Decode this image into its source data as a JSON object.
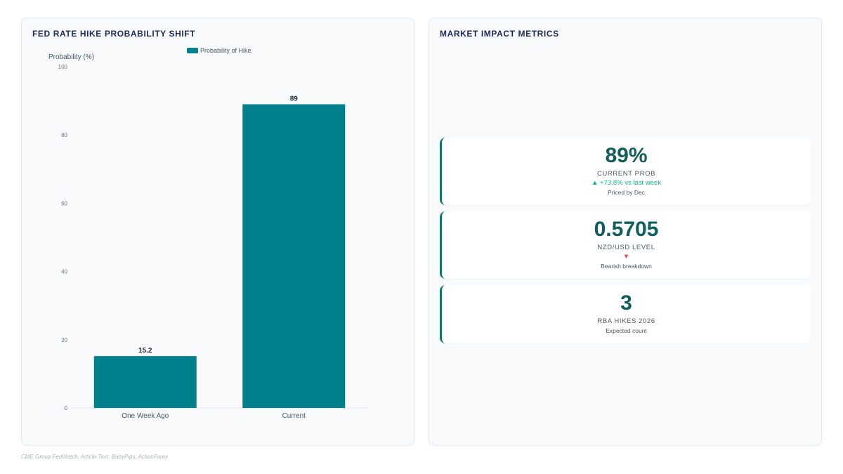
{
  "left_panel": {
    "title": "FED RATE HIKE PROBABILITY SHIFT"
  },
  "right_panel": {
    "title": "MARKET IMPACT METRICS"
  },
  "chart_data": {
    "type": "bar",
    "categories": [
      "One Week Ago",
      "Current"
    ],
    "series": [
      {
        "name": "Probability of Hike",
        "values": [
          15.2,
          89
        ],
        "color": "#00808a"
      }
    ],
    "data_labels": [
      "15.2",
      "89"
    ],
    "ylabel": "Probability (%)",
    "xlabel": "",
    "ylim": [
      0,
      100
    ],
    "yticks": [
      0,
      20,
      40,
      60,
      80,
      100
    ],
    "legend_position": "top-center",
    "grid": false
  },
  "metrics": [
    {
      "value": "89%",
      "label": "CURRENT PROB",
      "change": "▲ +73.8% vs last week",
      "note": "Priced by Dec"
    },
    {
      "value": "0.5705",
      "label": "NZD/USD LEVEL",
      "change": "▼",
      "note": "Bearish breakdown"
    },
    {
      "value": "3",
      "label": "RBA HIKES 2026",
      "note": "Expected count"
    }
  ],
  "source": "CME Group FedWatch, Article Text, BabyPips, ActionForex",
  "colors": {
    "accent": "#0f766e",
    "bar": "#00808a",
    "up": "#10b981",
    "down": "#ef4444"
  }
}
